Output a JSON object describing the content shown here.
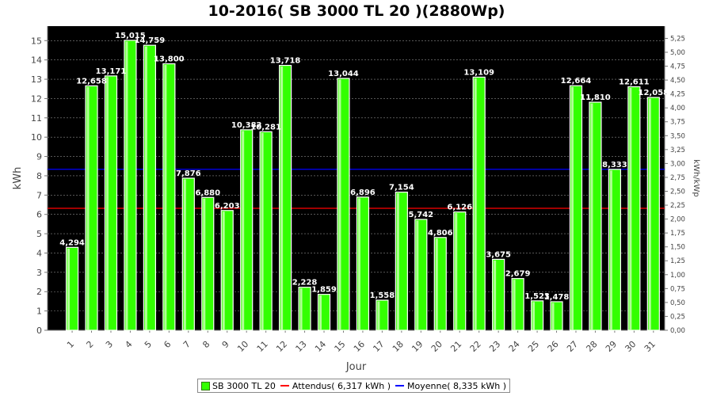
{
  "title": "10-2016( SB 3000 TL 20 )(2880Wp)",
  "colors": {
    "plot_background": "#000000",
    "bar_fill": "#33ff00",
    "bar_edge": "#ffffff",
    "attendus_line": "#ff0000",
    "moyenne_line": "#0000ff",
    "grid": "#8a8a8a"
  },
  "legend": [
    {
      "label": "SB 3000 TL 20",
      "kind": "box",
      "color": "#33ff00"
    },
    {
      "label": "Attendus( 6,317 kWh )",
      "kind": "line",
      "color": "#ff0000"
    },
    {
      "label": "Moyenne( 8,335 kWh )",
      "kind": "line",
      "color": "#0000ff"
    }
  ],
  "chart_data": {
    "type": "bar",
    "title": "10-2016( SB 3000 TL 20 )(2880Wp)",
    "xlabel": "Jour",
    "ylabel": "kWh",
    "y2label": "kWh/kWp",
    "ylim": [
      0,
      15.75
    ],
    "y2lim": [
      0,
      5.47
    ],
    "yticks": [
      "0",
      "1",
      "2",
      "3",
      "4",
      "5",
      "6",
      "7",
      "8",
      "9",
      "10",
      "11",
      "12",
      "13",
      "14",
      "15"
    ],
    "y2ticks": [
      "0,00",
      "0,25",
      "0,50",
      "0,75",
      "1,00",
      "1,25",
      "1,50",
      "1,75",
      "2,00",
      "2,25",
      "2,50",
      "2,75",
      "3,00",
      "3,25",
      "3,50",
      "3,75",
      "4,00",
      "4,25",
      "4,50",
      "4,75",
      "5,00",
      "5,25"
    ],
    "categories": [
      "1",
      "2",
      "3",
      "4",
      "5",
      "6",
      "7",
      "8",
      "9",
      "10",
      "11",
      "12",
      "13",
      "14",
      "15",
      "16",
      "17",
      "18",
      "19",
      "20",
      "21",
      "22",
      "23",
      "24",
      "25",
      "26",
      "27",
      "28",
      "29",
      "30",
      "31"
    ],
    "series": [
      {
        "name": "SB 3000 TL 20",
        "values": [
          4.294,
          12.658,
          13.171,
          15.015,
          14.759,
          13.8,
          7.876,
          6.88,
          6.203,
          10.382,
          10.281,
          13.718,
          2.228,
          1.859,
          13.044,
          6.896,
          1.558,
          7.154,
          5.742,
          4.806,
          6.126,
          13.109,
          3.675,
          2.679,
          1.523,
          1.478,
          12.664,
          11.81,
          8.333,
          12.611,
          12.058
        ],
        "labels": [
          "4,294",
          "12,658",
          "13,171",
          "15,015",
          "14,759",
          "13,800",
          "7,876",
          "6,880",
          "6,203",
          "10,382",
          "10,281",
          "13,718",
          "2,228",
          "1,859",
          "13,044",
          "6,896",
          "1,558",
          "7,154",
          "5,742",
          "4,806",
          "6,126",
          "13,109",
          "3,675",
          "2,679",
          "1,523",
          "1,478",
          "12,664",
          "11,810",
          "8,333",
          "12,611",
          "12,058"
        ]
      }
    ],
    "reference_lines": [
      {
        "name": "Attendus( 6,317 kWh )",
        "value": 6.317,
        "color": "#ff0000"
      },
      {
        "name": "Moyenne( 8,335 kWh )",
        "value": 8.335,
        "color": "#0000ff"
      }
    ],
    "grid": true,
    "legend_position": "bottom"
  }
}
